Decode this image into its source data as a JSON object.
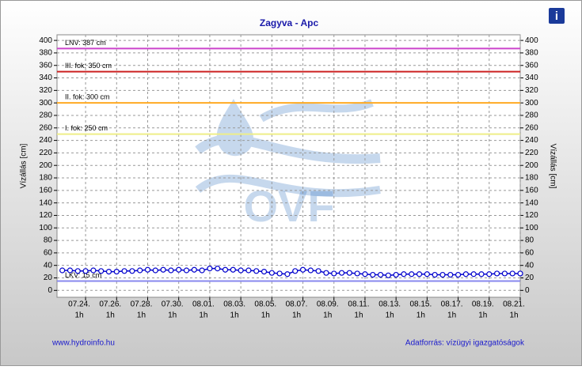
{
  "chart_data": {
    "type": "line",
    "title": "Zagyva - Apc",
    "y_label": "Vízállás [cm]",
    "y2_label": "Vízállás [cm]",
    "watermark": "OVF",
    "footer_left": "www.hydroinfo.hu",
    "footer_right": "Adatforrás: vízügyi igazgatóságok",
    "info_icon": "i",
    "xlim": [
      -1.84,
      28
    ],
    "xticks": [
      {
        "value": 0,
        "label": [
          "07.24.",
          "1h"
        ]
      },
      {
        "value": 2,
        "label": [
          "07.26.",
          "1h"
        ]
      },
      {
        "value": 4,
        "label": [
          "07.28.",
          "1h"
        ]
      },
      {
        "value": 6,
        "label": [
          "07.30.",
          "1h"
        ]
      },
      {
        "value": 8,
        "label": [
          "08.01.",
          "1h"
        ]
      },
      {
        "value": 10,
        "label": [
          "08.03.",
          "1h"
        ]
      },
      {
        "value": 12,
        "label": [
          "08.05.",
          "1h"
        ]
      },
      {
        "value": 14,
        "label": [
          "08.07.",
          "1h"
        ]
      },
      {
        "value": 16,
        "label": [
          "08.09.",
          "1h"
        ]
      },
      {
        "value": 18,
        "label": [
          "08.11.",
          "1h"
        ]
      },
      {
        "value": 20,
        "label": [
          "08.13.",
          "1h"
        ]
      },
      {
        "value": 22,
        "label": [
          "08.15.",
          "1h"
        ]
      },
      {
        "value": 24,
        "label": [
          "08.17.",
          "1h"
        ]
      },
      {
        "value": 26,
        "label": [
          "08.19.",
          "1h"
        ]
      },
      {
        "value": 28,
        "label": [
          "08.21.",
          "1h"
        ]
      }
    ],
    "ylim": [
      -11,
      409
    ],
    "yticks": [
      0,
      20,
      40,
      60,
      80,
      100,
      120,
      140,
      160,
      180,
      200,
      220,
      240,
      260,
      280,
      300,
      320,
      340,
      360,
      380,
      400
    ],
    "y2lim": [
      -11,
      409
    ],
    "y2ticks": [
      0,
      20,
      40,
      60,
      80,
      100,
      120,
      140,
      160,
      180,
      200,
      220,
      240,
      260,
      280,
      300,
      320,
      340,
      360,
      380,
      400
    ],
    "grid": true,
    "thresholds": [
      {
        "label": "LNV: 387 cm",
        "value": 387,
        "color": "#cc44cc"
      },
      {
        "label": "III. fok: 350 cm",
        "value": 350,
        "color": "#cc2222"
      },
      {
        "label": "II. fok: 300 cm",
        "value": 300,
        "color": "#ffaa22"
      },
      {
        "label": "I. fok: 250 cm",
        "value": 250,
        "color": "#eeee88"
      },
      {
        "label": "LKV: 15 cm",
        "value": 15,
        "color": "#8888ee"
      }
    ],
    "series": [
      {
        "color": "#0000cc",
        "x": [
          -1.5,
          -1,
          -0.5,
          0,
          0.5,
          1,
          1.5,
          2,
          2.5,
          3,
          3.5,
          4,
          4.5,
          5,
          5.5,
          6,
          6.5,
          7,
          7.5,
          8,
          8.5,
          9,
          9.5,
          10,
          10.5,
          11,
          11.5,
          12,
          12.5,
          13,
          13.5,
          14,
          14.5,
          15,
          15.5,
          16,
          16.5,
          17,
          17.5,
          18,
          18.5,
          19,
          19.5,
          20,
          20.5,
          21,
          21.5,
          22,
          22.5,
          23,
          23.5,
          24,
          24.5,
          25,
          25.5,
          26,
          26.5,
          27,
          27.5,
          28
        ],
        "values": [
          32,
          32,
          31,
          31,
          32,
          31,
          30,
          30,
          31,
          31,
          32,
          33,
          32,
          33,
          32,
          33,
          32,
          33,
          32,
          35,
          35,
          33,
          33,
          32,
          32,
          31,
          30,
          28,
          27,
          26,
          31,
          33,
          32,
          31,
          28,
          27,
          28,
          28,
          27,
          26,
          25,
          25,
          24,
          25,
          26,
          26,
          26,
          26,
          25,
          25,
          25,
          25,
          26,
          26,
          26,
          26,
          27,
          27,
          27,
          27
        ]
      }
    ]
  }
}
